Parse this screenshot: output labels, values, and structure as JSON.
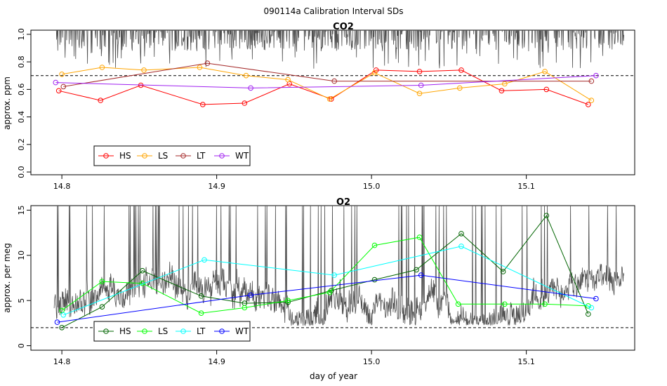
{
  "figure_title": "090114a   Calibration Interval SDs",
  "x_axis_label": "day of year",
  "colors": {
    "HS_co2": "#ff0000",
    "LS_co2": "#ffa500",
    "LT_co2": "#a52a2a",
    "WT_co2": "#a020f0",
    "HS_o2": "#006400",
    "LS_o2": "#00ff00",
    "LT_o2": "#00ffff",
    "WT_o2": "#0000ff",
    "trace": "#505050",
    "threshold": "#000000"
  },
  "chart_data": [
    {
      "type": "line",
      "title": "CO2",
      "xlabel": "",
      "ylabel": "approx. ppm",
      "xlim": [
        14.78,
        15.17
      ],
      "ylim": [
        -0.02,
        1.03
      ],
      "x_ticks": [
        "14.8",
        "14.9",
        "15.0",
        "15.1"
      ],
      "y_ticks": [
        "0.0",
        "0.2",
        "0.4",
        "0.6",
        "0.8",
        "1.0"
      ],
      "threshold": 0.7,
      "legend_position": "bottom-left",
      "trace_description": "continuous grey trace near top, clipped above 1.0 with dips to about 0.7",
      "series": [
        {
          "name": "HS",
          "x": [
            14.798,
            14.825,
            14.851,
            14.891,
            14.918,
            14.947,
            14.974,
            15.003,
            15.031,
            15.058,
            15.084,
            15.113,
            15.14
          ],
          "y": [
            0.59,
            0.52,
            0.63,
            0.49,
            0.5,
            0.64,
            0.53,
            0.74,
            0.73,
            0.74,
            0.59,
            0.6,
            0.49
          ]
        },
        {
          "name": "LS",
          "x": [
            14.8,
            14.826,
            14.853,
            14.889,
            14.919,
            14.946,
            14.973,
            15.002,
            15.031,
            15.057,
            15.086,
            15.112,
            15.142
          ],
          "y": [
            0.71,
            0.76,
            0.74,
            0.76,
            0.7,
            0.67,
            0.53,
            0.72,
            0.57,
            0.61,
            0.64,
            0.73,
            0.52
          ]
        },
        {
          "name": "LT",
          "x": [
            14.801,
            14.894,
            14.976,
            15.142
          ],
          "y": [
            0.62,
            0.79,
            0.66,
            0.66
          ]
        },
        {
          "name": "WT",
          "x": [
            14.796,
            14.922,
            15.032,
            15.145
          ],
          "y": [
            0.65,
            0.61,
            0.63,
            0.7
          ]
        }
      ]
    },
    {
      "type": "line",
      "title": "O2",
      "xlabel": "day of year",
      "ylabel": "approx. per meg",
      "xlim": [
        14.78,
        15.17
      ],
      "ylim": [
        -0.5,
        15.5
      ],
      "x_ticks": [
        "14.8",
        "14.9",
        "15.0",
        "15.1"
      ],
      "y_ticks": [
        "0",
        "5",
        "10",
        "15"
      ],
      "threshold": 2.0,
      "legend_position": "bottom-left",
      "trace_description": "noisy grey trace mostly 3-10 per meg with frequent spikes clipped above 15",
      "series": [
        {
          "name": "HS",
          "x": [
            14.8,
            14.826,
            14.852,
            14.89,
            14.918,
            14.946,
            14.974,
            15.002,
            15.029,
            15.058,
            15.085,
            15.113,
            15.14
          ],
          "y": [
            2.0,
            4.3,
            8.3,
            5.5,
            4.7,
            4.8,
            6.1,
            7.3,
            8.4,
            12.4,
            8.2,
            14.4,
            3.5
          ]
        },
        {
          "name": "LS",
          "x": [
            14.8,
            14.826,
            14.852,
            14.89,
            14.918,
            14.946,
            14.973,
            15.002,
            15.031,
            15.056,
            15.086,
            15.112,
            15.14
          ],
          "y": [
            3.9,
            7.1,
            6.9,
            3.6,
            4.2,
            5.0,
            5.9,
            11.1,
            12.0,
            4.6,
            4.6,
            4.6,
            4.4
          ]
        },
        {
          "name": "LT",
          "x": [
            14.801,
            14.892,
            14.976,
            15.058,
            15.142
          ],
          "y": [
            3.4,
            9.5,
            7.8,
            11.0,
            4.2
          ]
        },
        {
          "name": "WT",
          "x": [
            14.797,
            14.922,
            15.032,
            15.145
          ],
          "y": [
            2.6,
            5.6,
            7.8,
            5.2
          ]
        }
      ]
    }
  ]
}
